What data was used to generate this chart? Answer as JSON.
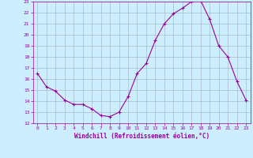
{
  "x": [
    0,
    1,
    2,
    3,
    4,
    5,
    6,
    7,
    8,
    9,
    10,
    11,
    12,
    13,
    14,
    15,
    16,
    17,
    18,
    19,
    20,
    21,
    22,
    23
  ],
  "y": [
    16.5,
    15.3,
    14.9,
    14.1,
    13.7,
    13.7,
    13.3,
    12.7,
    12.6,
    13.0,
    14.4,
    16.5,
    17.4,
    19.5,
    21.0,
    21.9,
    22.4,
    23.0,
    23.1,
    21.4,
    19.0,
    18.0,
    15.8,
    14.1
  ],
  "line_color": "#990099",
  "marker": "+",
  "marker_size": 3,
  "background_color": "#cceeff",
  "grid_color": "#aabbcc",
  "xlabel": "Windchill (Refroidissement éolien,°C)",
  "xlabel_color": "#990099",
  "tick_color": "#990099",
  "ylim": [
    12,
    23
  ],
  "xlim": [
    -0.5,
    23.5
  ],
  "yticks": [
    12,
    13,
    14,
    15,
    16,
    17,
    18,
    19,
    20,
    21,
    22,
    23
  ],
  "xticks": [
    0,
    1,
    2,
    3,
    4,
    5,
    6,
    7,
    8,
    9,
    10,
    11,
    12,
    13,
    14,
    15,
    16,
    17,
    18,
    19,
    20,
    21,
    22,
    23
  ]
}
